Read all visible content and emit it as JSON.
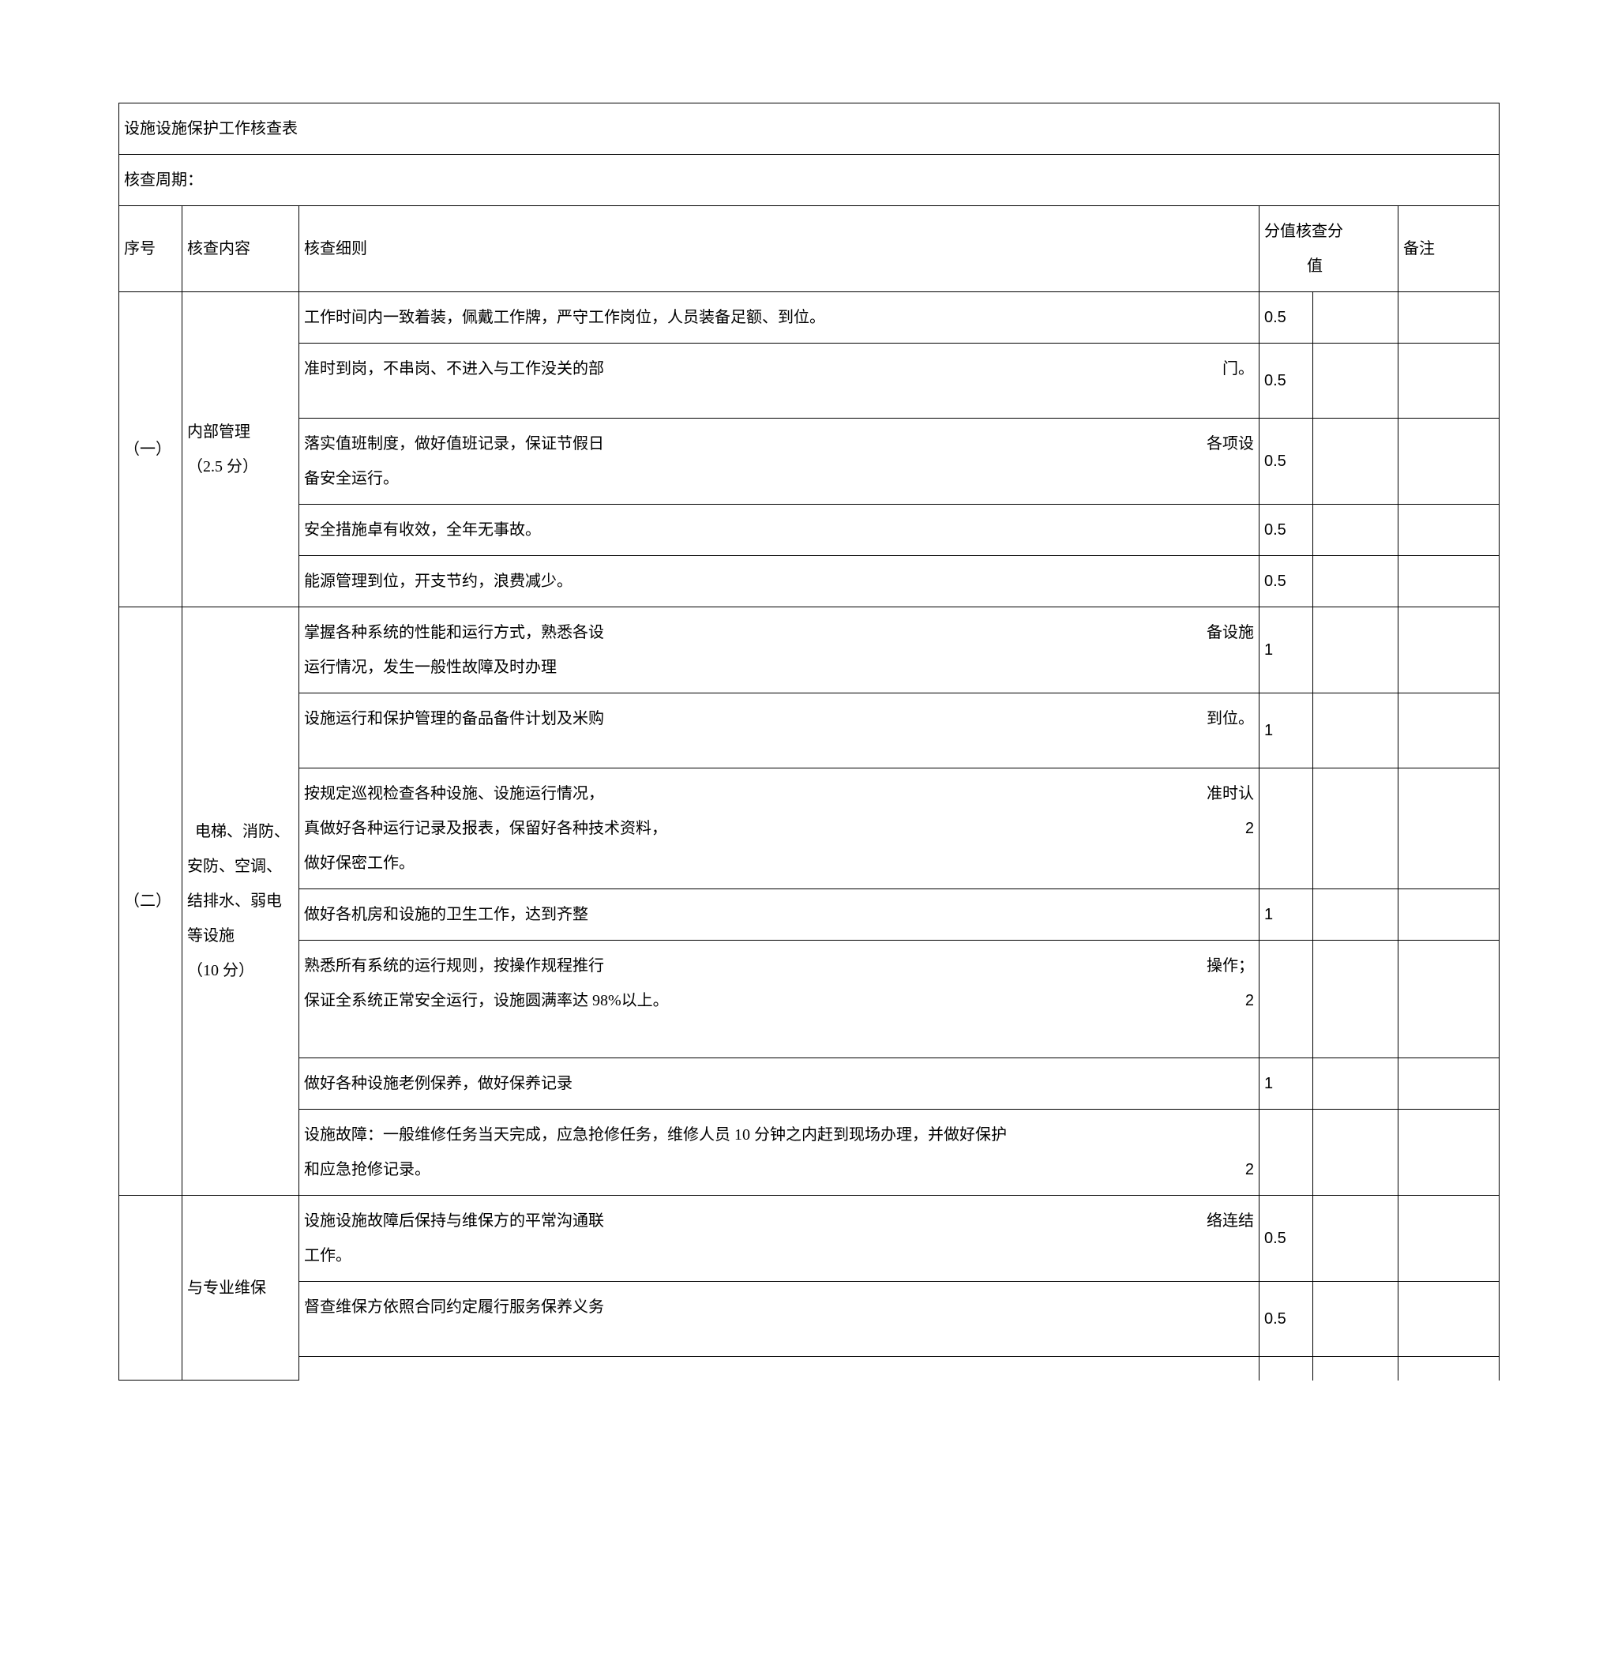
{
  "title": "设施设施保护工作核查表",
  "period_label": "核查周期：",
  "header": {
    "num": "序号",
    "content": "核查内容",
    "detail": "核查细则",
    "score": "分值",
    "check": "核查分值",
    "note": "备注"
  },
  "sections": [
    {
      "num": "（一）",
      "content_lines": [
        "内部管理",
        "（2.5 分）"
      ],
      "rows": [
        {
          "detail_main": "工作时间内一致着装，佩戴工作牌，严守工作岗位，人员装备足额、到位。",
          "detail_tail": "",
          "score": "0.5"
        },
        {
          "detail_main": "准时到岗，不串岗、不进入与工作没关的部",
          "detail_tail": "门。",
          "score": "0.5",
          "tall": true
        },
        {
          "detail_main": "落实值班制度，做好值班记录，保证节假日",
          "detail_tail": "各项设",
          "detail_line2": "备安全运行。",
          "score": "0.5"
        },
        {
          "detail_main": "安全措施卓有收效，全年无事故。",
          "detail_tail": "",
          "score": "0.5"
        },
        {
          "detail_main": "能源管理到位，开支节约，浪费减少。",
          "detail_tail": "",
          "score": "0.5"
        }
      ]
    },
    {
      "num": "（二）",
      "content_lines": [
        "  电梯、消防、",
        "安防、空调、",
        "结排水、弱电",
        "等设施",
        "（10 分）"
      ],
      "rows": [
        {
          "detail_main": "掌握各种系统的性能和运行方式，熟悉各设",
          "detail_tail": "备设施",
          "detail_line2": "运行情况，发生一般性故障及时办理",
          "score": "1"
        },
        {
          "detail_main": "设施运行和保护管理的备品备件计划及米购",
          "detail_tail": "到位。",
          "score": "1",
          "tall": true
        },
        {
          "detail_main": "按规定巡视检查各种设施、设施运行情况，",
          "detail_tail": "准时认",
          "detail_line2": "真做好各种运行记录及报表，保留好各种技术资料，",
          "detail_line3": "做好保密工作。",
          "score_inline": "2",
          "score": ""
        },
        {
          "detail_main": "做好各机房和设施的卫生工作，达到齐整",
          "detail_tail": "",
          "score": "1"
        },
        {
          "detail_main": "熟悉所有系统的运行规则，按操作规程推行",
          "detail_tail": "操作；",
          "detail_line2": "保证全系统正常安全运行，设施圆满率达 98%以上。",
          "score_inline": "2",
          "score": "",
          "tall_after": true
        },
        {
          "detail_main": "做好各种设施老例保养，做好保养记录",
          "detail_tail": "",
          "score": "1"
        },
        {
          "detail_main": "设施故障：一般维修任务当天完成，应急抢修任务，维修人员 10 分钟之内赶到现场办理，并做好保护",
          "score_inline": "2",
          "detail_line2": "和应急抢修记录。",
          "score": ""
        }
      ]
    },
    {
      "num": "",
      "content_lines": [
        "与专业维保"
      ],
      "rows": [
        {
          "detail_main": "设施设施故障后保持与维保方的平常沟通联",
          "detail_tail": "络连结",
          "detail_line2": "工作。",
          "score": "0.5"
        },
        {
          "detail_main": "督查维保方依照合同约定履行服务保养义务",
          "detail_tail": "",
          "score": "0.5",
          "tall": true
        },
        {
          "detail_main": "",
          "detail_tail": "",
          "score": "",
          "open": true
        }
      ]
    }
  ]
}
